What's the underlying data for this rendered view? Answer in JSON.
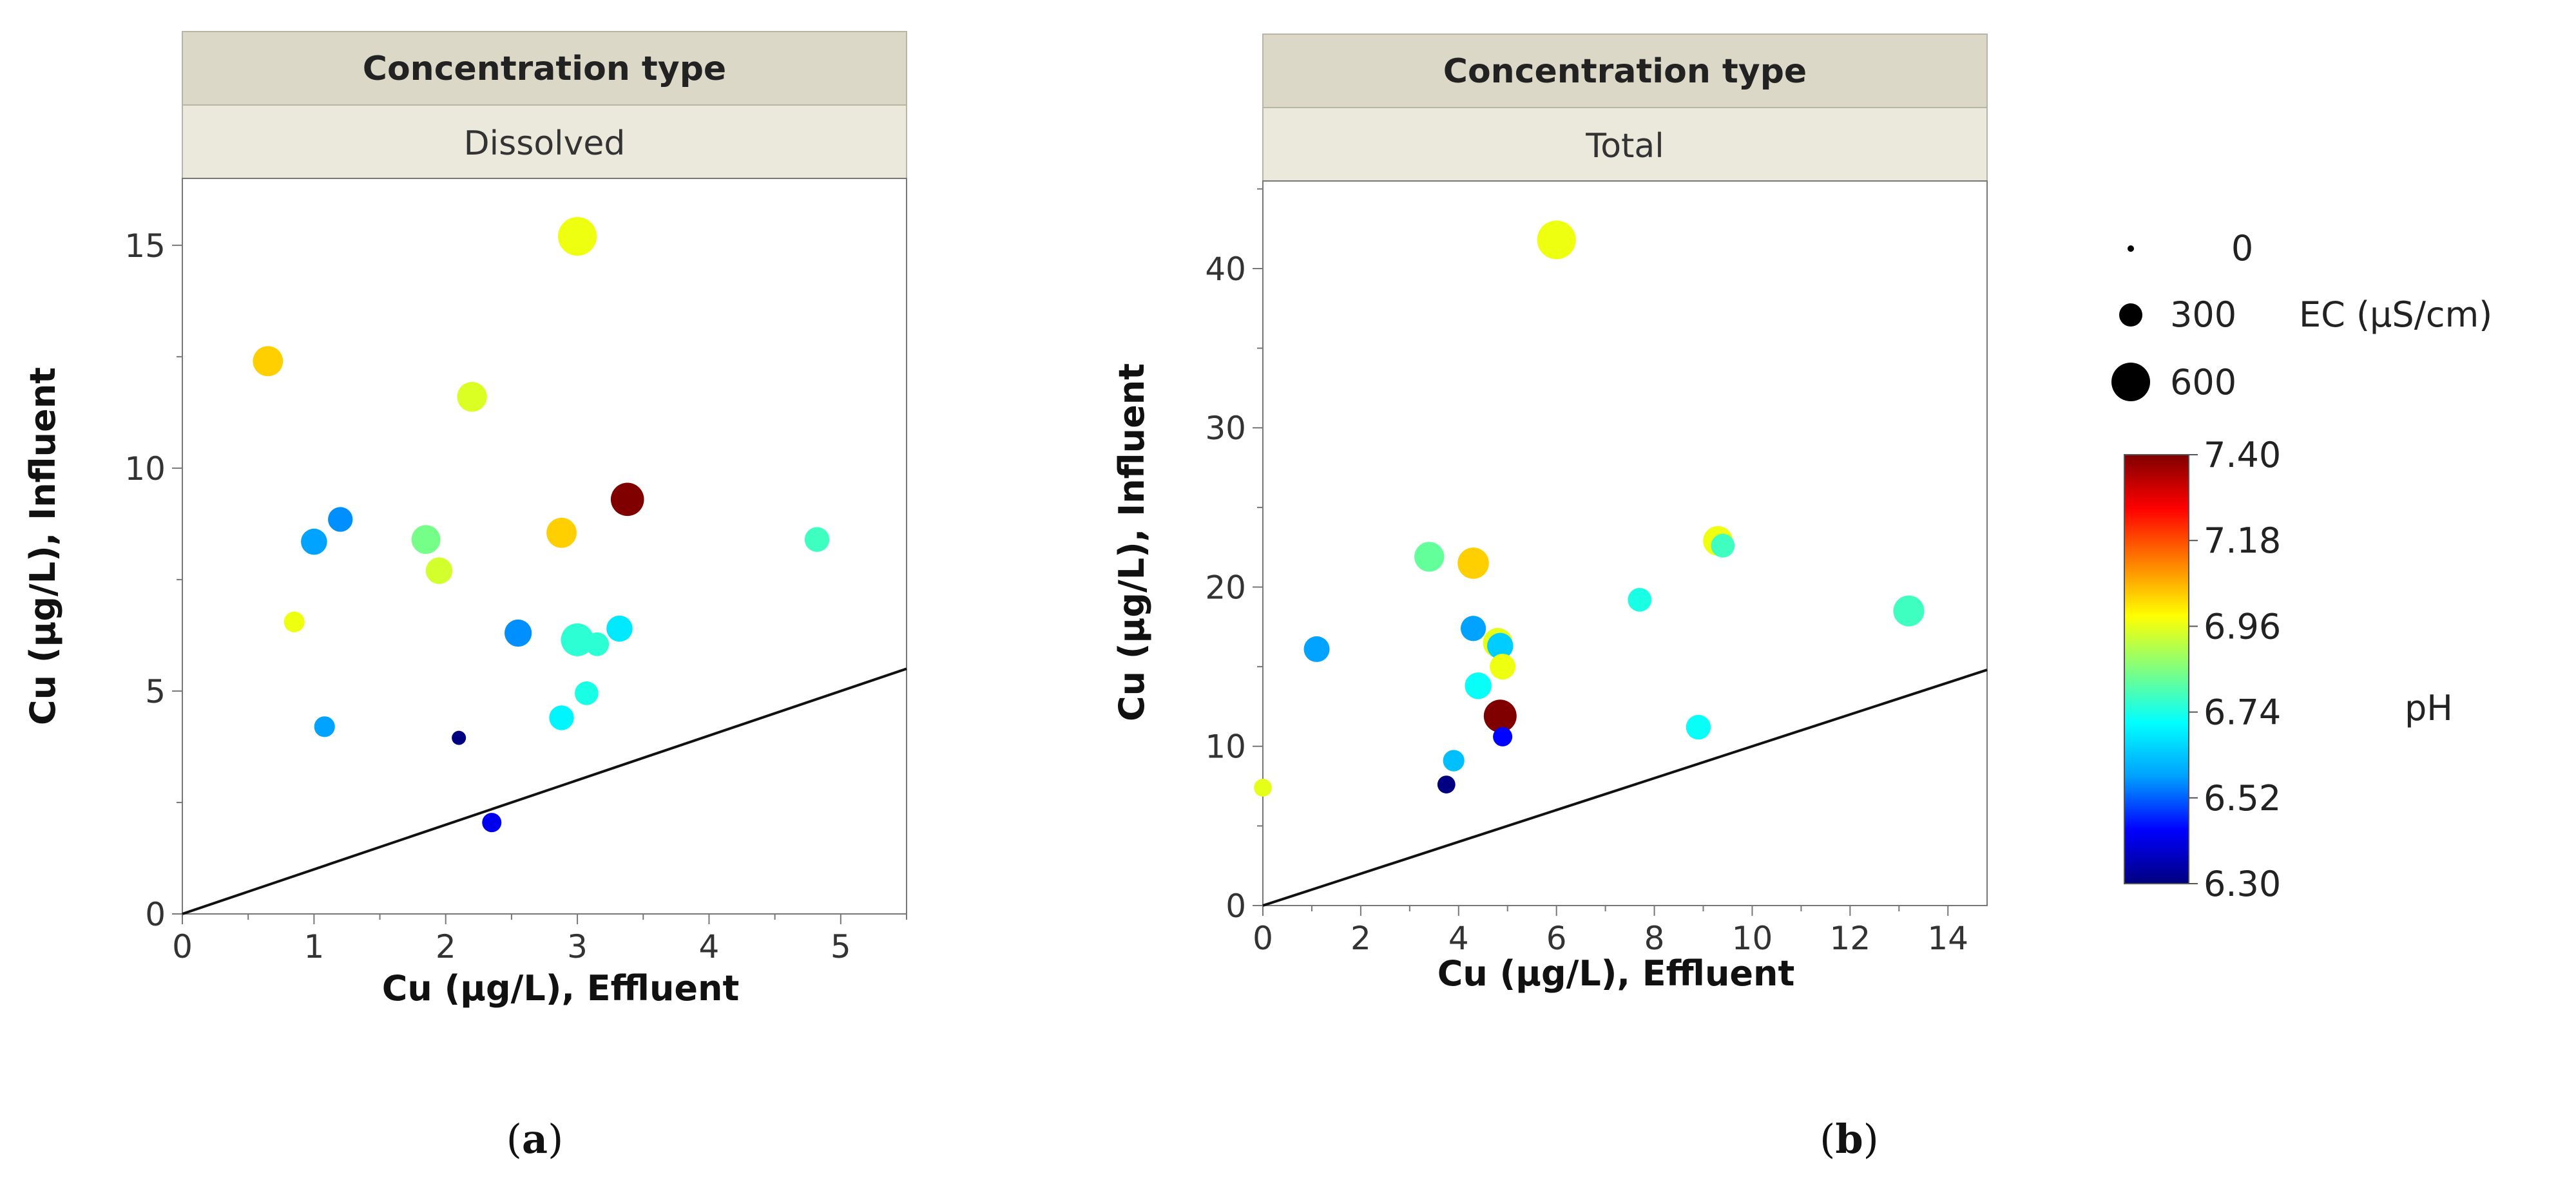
{
  "chart_data": [
    {
      "type": "scatter",
      "panel_label": "a",
      "header_title": "Concentration type",
      "header_value": "Dissolved",
      "xlabel": "Cu (µg/L), Effluent",
      "ylabel": "Cu (µg/L), Influent",
      "xlim": [
        0,
        5.5
      ],
      "ylim": [
        0,
        16.5
      ],
      "xticks": [
        0,
        1,
        2,
        3,
        4,
        5
      ],
      "yticks": [
        0,
        5,
        10,
        15
      ],
      "reference_line": "y = x",
      "points": [
        {
          "x": 3.0,
          "y": 15.2,
          "ec": 560,
          "ph": 6.97
        },
        {
          "x": 0.65,
          "y": 12.4,
          "ec": 310,
          "ph": 7.04
        },
        {
          "x": 2.2,
          "y": 11.6,
          "ec": 300,
          "ph": 6.95
        },
        {
          "x": 3.38,
          "y": 9.3,
          "ec": 390,
          "ph": 7.4
        },
        {
          "x": 1.2,
          "y": 8.85,
          "ec": 190,
          "ph": 6.56
        },
        {
          "x": 1.0,
          "y": 8.35,
          "ec": 220,
          "ph": 6.58
        },
        {
          "x": 1.85,
          "y": 8.4,
          "ec": 280,
          "ph": 6.84
        },
        {
          "x": 2.88,
          "y": 8.55,
          "ec": 310,
          "ph": 7.04
        },
        {
          "x": 4.82,
          "y": 8.4,
          "ec": 190,
          "ph": 6.78
        },
        {
          "x": 1.95,
          "y": 7.7,
          "ec": 230,
          "ph": 6.94
        },
        {
          "x": 0.85,
          "y": 6.55,
          "ec": 120,
          "ph": 6.97
        },
        {
          "x": 2.55,
          "y": 6.3,
          "ec": 240,
          "ph": 6.56
        },
        {
          "x": 3.0,
          "y": 6.15,
          "ec": 380,
          "ph": 6.76
        },
        {
          "x": 3.15,
          "y": 6.05,
          "ec": 170,
          "ph": 6.76
        },
        {
          "x": 3.32,
          "y": 6.4,
          "ec": 220,
          "ph": 6.68
        },
        {
          "x": 3.07,
          "y": 4.95,
          "ec": 170,
          "ph": 6.74
        },
        {
          "x": 2.88,
          "y": 4.4,
          "ec": 190,
          "ph": 6.7
        },
        {
          "x": 1.08,
          "y": 4.2,
          "ec": 120,
          "ph": 6.58
        },
        {
          "x": 2.1,
          "y": 3.95,
          "ec": 40,
          "ph": 6.3
        },
        {
          "x": 2.35,
          "y": 2.05,
          "ec": 100,
          "ph": 6.42
        }
      ]
    },
    {
      "type": "scatter",
      "panel_label": "b",
      "header_title": "Concentration type",
      "header_value": "Total",
      "xlabel": "Cu (µg/L), Effluent",
      "ylabel": "Cu (µg/L), Influent",
      "xlim": [
        0,
        14.8
      ],
      "ylim": [
        0,
        45.5
      ],
      "xticks": [
        0,
        2,
        4,
        6,
        8,
        10,
        12,
        14
      ],
      "yticks": [
        0,
        10,
        20,
        30,
        40
      ],
      "reference_line": "y = x",
      "points": [
        {
          "x": 6.0,
          "y": 41.8,
          "ec": 560,
          "ph": 6.97
        },
        {
          "x": 9.3,
          "y": 22.9,
          "ec": 300,
          "ph": 6.97
        },
        {
          "x": 9.4,
          "y": 22.6,
          "ec": 170,
          "ph": 6.78
        },
        {
          "x": 3.4,
          "y": 21.9,
          "ec": 300,
          "ph": 6.82
        },
        {
          "x": 4.3,
          "y": 21.5,
          "ec": 340,
          "ph": 7.04
        },
        {
          "x": 4.3,
          "y": 17.4,
          "ec": 200,
          "ph": 6.58
        },
        {
          "x": 4.8,
          "y": 16.5,
          "ec": 300,
          "ph": 6.96
        },
        {
          "x": 4.85,
          "y": 16.3,
          "ec": 220,
          "ph": 6.64
        },
        {
          "x": 7.7,
          "y": 19.2,
          "ec": 170,
          "ph": 6.74
        },
        {
          "x": 13.2,
          "y": 18.5,
          "ec": 330,
          "ph": 6.78
        },
        {
          "x": 1.1,
          "y": 16.1,
          "ec": 210,
          "ph": 6.58
        },
        {
          "x": 4.9,
          "y": 15.0,
          "ec": 210,
          "ph": 6.97
        },
        {
          "x": 4.4,
          "y": 13.8,
          "ec": 230,
          "ph": 6.72
        },
        {
          "x": 4.85,
          "y": 11.9,
          "ec": 380,
          "ph": 7.4
        },
        {
          "x": 8.9,
          "y": 11.2,
          "ec": 190,
          "ph": 6.72
        },
        {
          "x": 4.9,
          "y": 10.6,
          "ec": 100,
          "ph": 6.44
        },
        {
          "x": 3.9,
          "y": 9.1,
          "ec": 130,
          "ph": 6.62
        },
        {
          "x": 3.75,
          "y": 7.6,
          "ec": 80,
          "ph": 6.3
        },
        {
          "x": 0.0,
          "y": 7.4,
          "ec": 80,
          "ph": 6.96
        }
      ]
    }
  ],
  "size_legend": {
    "items": [
      {
        "value": 0,
        "label": "0"
      },
      {
        "value": 300,
        "label": "300"
      },
      {
        "value": 600,
        "label": "600"
      }
    ],
    "title": "EC (µS/cm)"
  },
  "color_legend": {
    "title": "pH",
    "min": 6.3,
    "max": 7.4,
    "tick_labels": [
      "7.40",
      "7.18",
      "6.96",
      "6.74",
      "6.52",
      "6.30"
    ],
    "stops": [
      "#000080",
      "#0000ff",
      "#00a0ff",
      "#00ffff",
      "#7fff7f",
      "#ffff00",
      "#ff8000",
      "#ff0000",
      "#800000"
    ]
  },
  "captions": {
    "a_open": "(",
    "a_letter": "a",
    "a_close": ")",
    "b_open": "(",
    "b_letter": "b",
    "b_close": ")"
  }
}
